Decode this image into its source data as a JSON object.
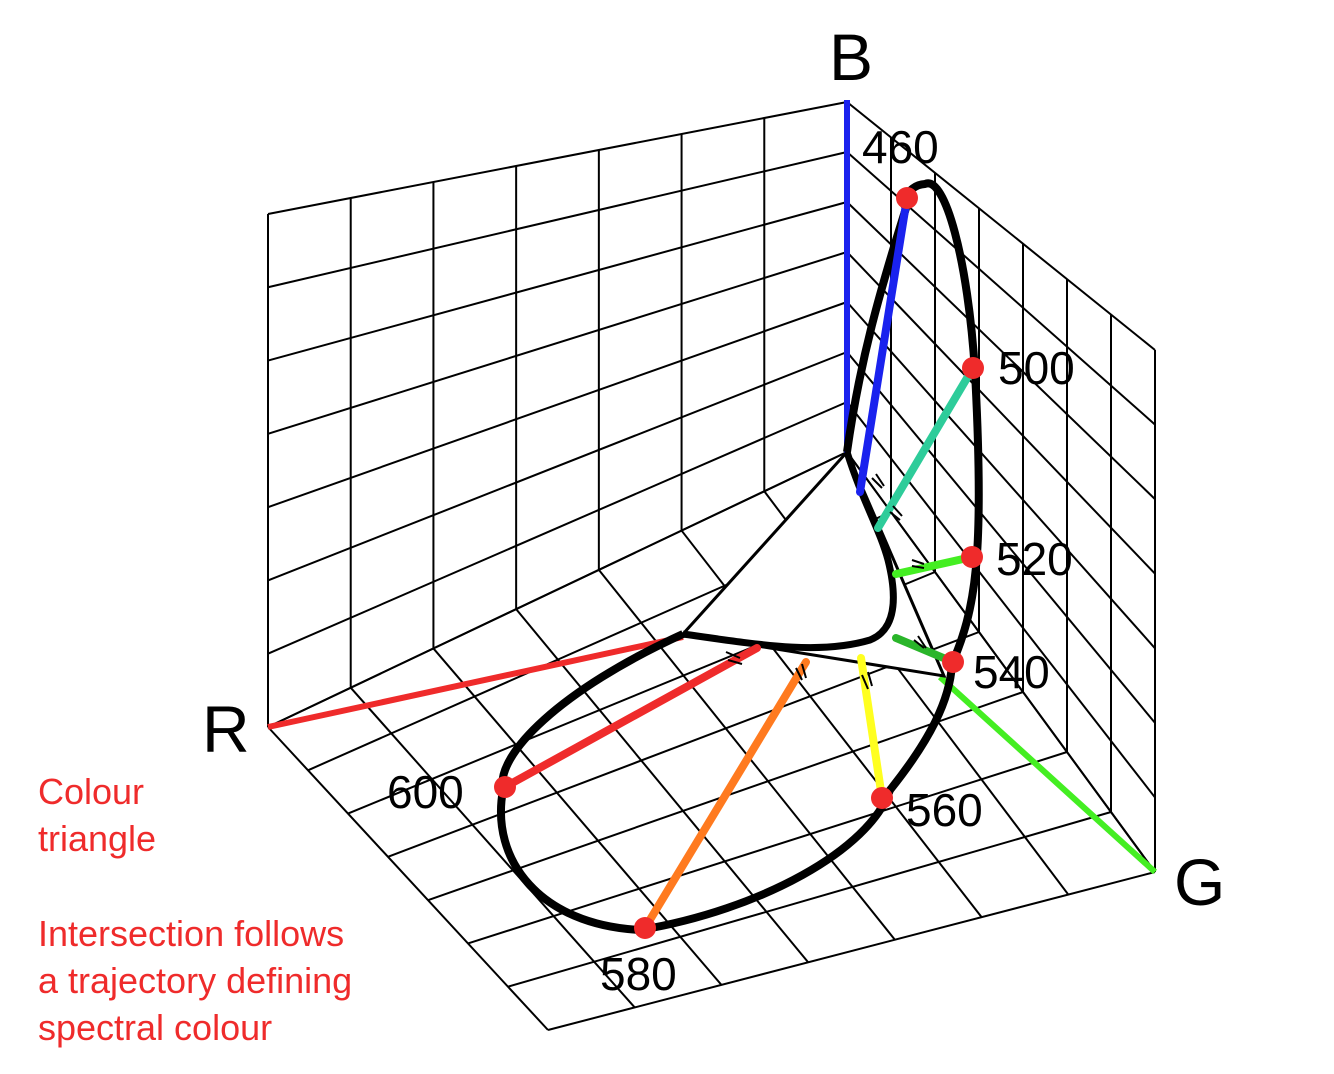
{
  "axes": {
    "red": {
      "label": "R",
      "color": "#ef2b2b"
    },
    "green": {
      "label": "G",
      "color": "#44ee22"
    },
    "blue": {
      "label": "B",
      "color": "#1a22ee"
    }
  },
  "wavelengths": [
    {
      "label": "460",
      "color": "#1a22ee"
    },
    {
      "label": "500",
      "color": "#2ecc9a"
    },
    {
      "label": "520",
      "color": "#44ee22"
    },
    {
      "label": "540",
      "color": "#2ab52a"
    },
    {
      "label": "560",
      "color": "#ffff20"
    },
    {
      "label": "580",
      "color": "#ff7a1f"
    },
    {
      "label": "600",
      "color": "#ef2b2b"
    }
  ],
  "marker_color": "#ef2b2b",
  "notes": {
    "colour_triangle": "Colour\ntriangle",
    "intersection": "Intersection follows\na trajectory defining\nspectral colour",
    "color": "#ef2b2b"
  }
}
